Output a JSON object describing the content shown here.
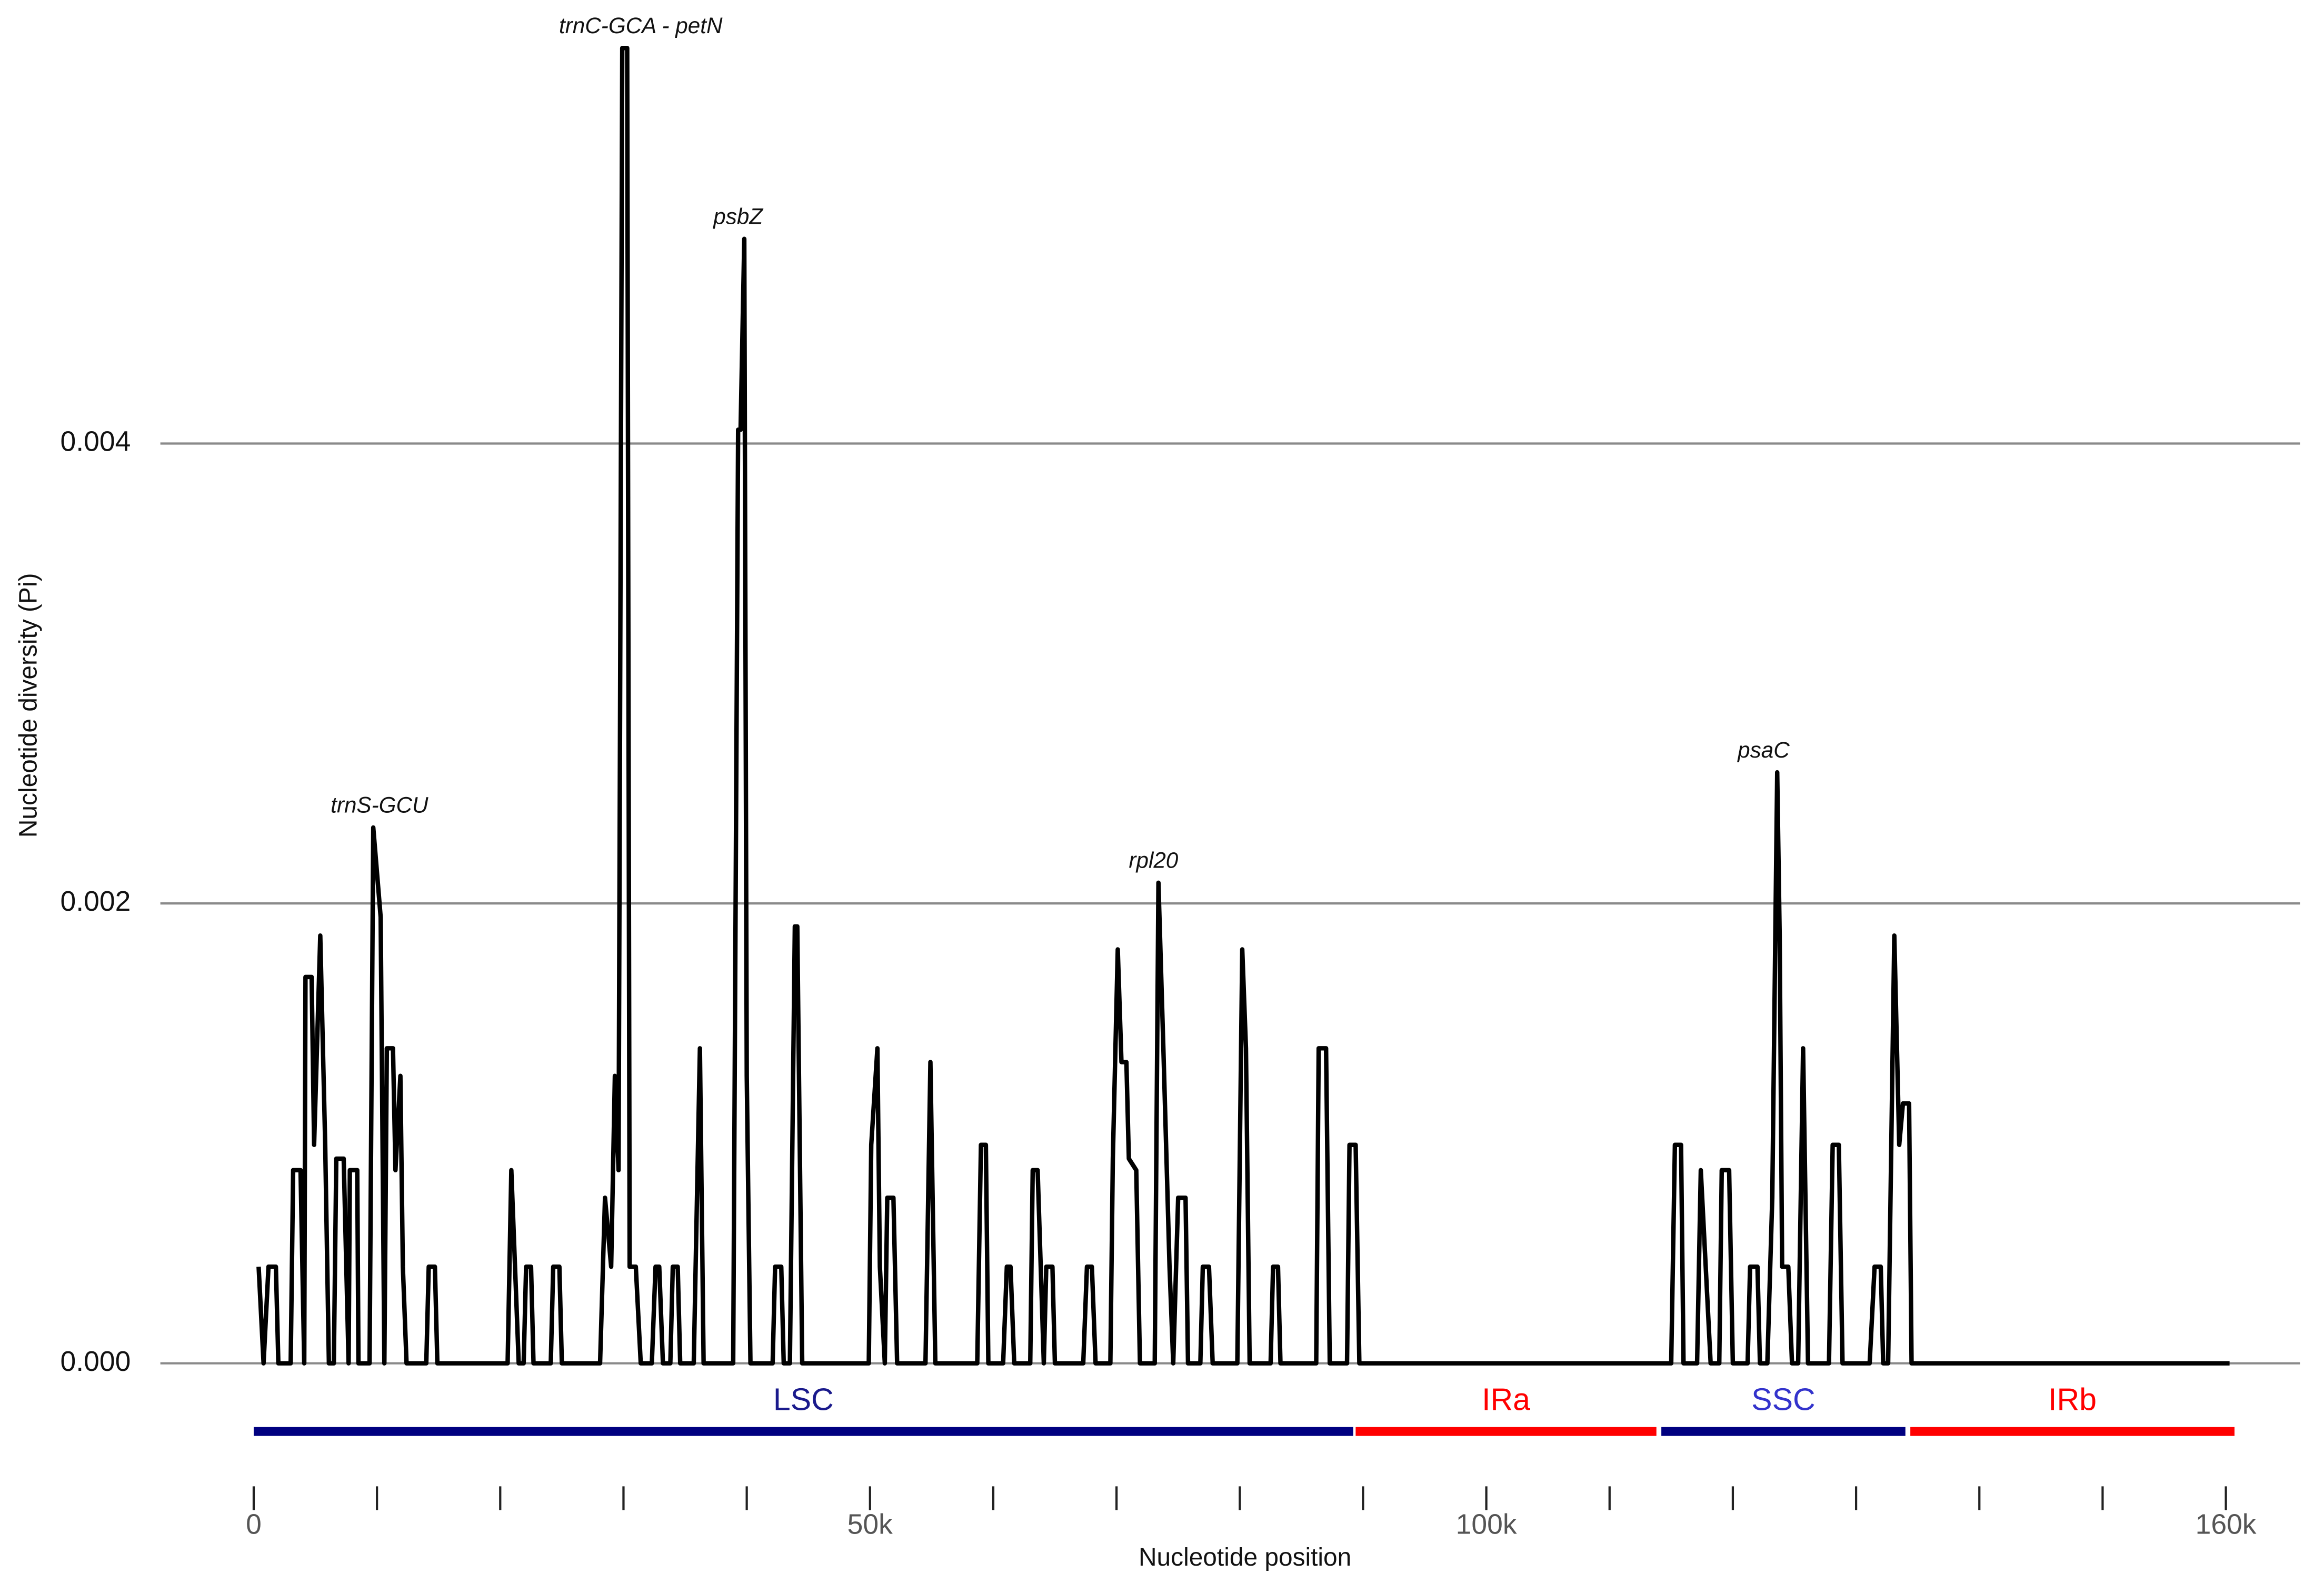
{
  "chart_data": {
    "type": "line",
    "xlabel": "Nucleotide position",
    "ylabel": "Nucleotide diversity (Pi)",
    "xlim": [
      0,
      160000
    ],
    "ylim": [
      0,
      0.0058
    ],
    "yticks": [
      {
        "value": 0,
        "label": "0.000"
      },
      {
        "value": 0.002,
        "label": "0.002"
      },
      {
        "value": 0.004,
        "label": "0.004"
      }
    ],
    "xticks": [
      0,
      {
        "value": 10000,
        "label": null
      },
      {
        "value": 20000,
        "label": null
      },
      {
        "value": 30000,
        "label": null
      },
      {
        "value": 40000,
        "label": null
      },
      {
        "value": 50000,
        "label": "50k"
      },
      {
        "value": 60000,
        "label": null
      },
      {
        "value": 70000,
        "label": null
      },
      {
        "value": 80000,
        "label": null
      },
      {
        "value": 90000,
        "label": null
      },
      {
        "value": 100000,
        "label": "100k"
      },
      {
        "value": 110000,
        "label": null
      },
      {
        "value": 120000,
        "label": null
      },
      {
        "value": 130000,
        "label": null
      },
      {
        "value": 140000,
        "label": null
      },
      {
        "value": 150000,
        "label": null
      },
      {
        "value": 160000,
        "label": "160k"
      }
    ],
    "grid": true,
    "series": [
      {
        "name": "Pi",
        "color": "#000000",
        "x": [
          400,
          800,
          1200,
          1800,
          2000,
          3000,
          3200,
          3800,
          4100,
          4200,
          4700,
          4900,
          5400,
          5800,
          6100,
          6500,
          6700,
          7300,
          7700,
          7800,
          8400,
          8500,
          9400,
          9700,
          10300,
          10600,
          10800,
          11300,
          11500,
          11900,
          12100,
          12400,
          14000,
          14200,
          14700,
          14900,
          20600,
          20900,
          21200,
          21500,
          21900,
          22100,
          22500,
          22700,
          24100,
          24300,
          24800,
          25000,
          28100,
          28500,
          29000,
          29300,
          29600,
          29900,
          30300,
          30500,
          31000,
          31400,
          32300,
          32600,
          32900,
          33200,
          33800,
          34000,
          34400,
          34600,
          35700,
          36200,
          36500,
          38900,
          39300,
          39500,
          39800,
          40000,
          40300,
          42100,
          42300,
          42800,
          43000,
          43500,
          43900,
          44100,
          44500,
          49900,
          50100,
          50600,
          50800,
          51200,
          51400,
          51900,
          52200,
          54500,
          54900,
          55300,
          58700,
          59000,
          59400,
          59600,
          60800,
          61100,
          61400,
          61700,
          63000,
          63200,
          63600,
          64100,
          64300,
          64800,
          65000,
          67300,
          67600,
          68000,
          68300,
          69500,
          69700,
          70100,
          70400,
          70800,
          71000,
          71600,
          71900,
          73100,
          73400,
          73800,
          74300,
          74600,
          75000,
          75600,
          75800,
          76800,
          77000,
          77500,
          77800,
          79800,
          80200,
          80500,
          80800,
          82500,
          82700,
          83100,
          83300,
          86200,
          86400,
          87000,
          87300,
          88700,
          88900,
          89400,
          89700,
          115000,
          115300,
          115800,
          116000,
          117100,
          117400,
          117800,
          118200,
          118900,
          119100,
          119700,
          120000,
          121200,
          121400,
          122000,
          122200,
          122800,
          123200,
          123600,
          123800,
          124000,
          124500,
          124800,
          125300,
          125700,
          126100,
          127800,
          128100,
          128600,
          128900,
          131100,
          131500,
          132000,
          132200,
          132600,
          133100,
          133500,
          133800,
          134300,
          134500,
          160300
        ],
        "values": [
          0.00042,
          0,
          0.00042,
          0.00042,
          0,
          0,
          0.00084,
          0.00084,
          0,
          0.00168,
          0.00168,
          0.00095,
          0.00186,
          0.00095,
          0,
          0,
          0.00089,
          0.00089,
          0,
          0.00084,
          0.00084,
          0,
          0,
          0.00233,
          0.00194,
          0,
          0.00137,
          0.00137,
          0.00084,
          0.00125,
          0.00042,
          0,
          0,
          0.00042,
          0.00042,
          0,
          0,
          0.00084,
          0.00042,
          0,
          0,
          0.00042,
          0.00042,
          0,
          0,
          0.00042,
          0.00042,
          0,
          0,
          0.00072,
          0.00042,
          0.00125,
          0.00084,
          0.00572,
          0.00572,
          0.00042,
          0.00042,
          0,
          0,
          0.00042,
          0.00042,
          0,
          0,
          0.00042,
          0.00042,
          0,
          0,
          0.00137,
          0,
          0,
          0.00406,
          0.00406,
          0.00489,
          0.00125,
          0,
          0,
          0.00042,
          0.00042,
          0,
          0,
          0.0019,
          0.0019,
          0,
          0,
          0.00095,
          0.00137,
          0.00042,
          0,
          0.00072,
          0.00072,
          0,
          0,
          0.00131,
          0,
          0,
          0.00095,
          0.00095,
          0,
          0,
          0.00042,
          0.00042,
          0,
          0,
          0.00084,
          0.00084,
          0,
          0.00042,
          0.00042,
          0,
          0,
          0.00042,
          0.00042,
          0,
          0,
          0.00089,
          0.0018,
          0.00131,
          0.00131,
          0.00089,
          0.00084,
          0,
          0,
          0.00209,
          0.00137,
          0.00042,
          0,
          0.00072,
          0.00072,
          0,
          0,
          0.00042,
          0.00042,
          0,
          0,
          0.0018,
          0.00137,
          0,
          0,
          0.00042,
          0.00042,
          0,
          0,
          0.00137,
          0.00137,
          0,
          0,
          0.00095,
          0.00095,
          0,
          0,
          0.00095,
          0.00095,
          0,
          0,
          0.00084,
          0.00042,
          0,
          0,
          0.00084,
          0.00084,
          0,
          0,
          0.00042,
          0.00042,
          0,
          0,
          0.00072,
          0.00257,
          0.00186,
          0.00042,
          0.00042,
          0,
          0,
          0.00137,
          0,
          0,
          0.00095,
          0.00095,
          0,
          0,
          0.00042,
          0.00042,
          0,
          0,
          0.00186,
          0.00095,
          0.00113,
          0.00113,
          0,
          0
        ]
      }
    ],
    "annotations": [
      {
        "text": "trnS-GCU",
        "x": 10200,
        "y": 0.00233
      },
      {
        "text": "trnC-GCA - petN",
        "x": 31400,
        "y": 0.00572
      },
      {
        "text": "psbZ",
        "x": 39300,
        "y": 0.00489
      },
      {
        "text": "rpl20",
        "x": 73000,
        "y": 0.00209
      },
      {
        "text": "psaC",
        "x": 122500,
        "y": 0.00257
      }
    ],
    "regions": [
      {
        "name": "LSC",
        "start": 0,
        "end": 89200,
        "color": "#000080",
        "label_color": "#1a1a8c"
      },
      {
        "name": "IRa",
        "start": 89400,
        "end": 113800,
        "color": "#ff0000",
        "label_color": "#ff0000"
      },
      {
        "name": "SSC",
        "start": 114200,
        "end": 134000,
        "color": "#000080",
        "label_color": "#3333cc"
      },
      {
        "name": "IRb",
        "start": 134400,
        "end": 160700,
        "color": "#ff0000",
        "label_color": "#ff0000"
      }
    ]
  }
}
